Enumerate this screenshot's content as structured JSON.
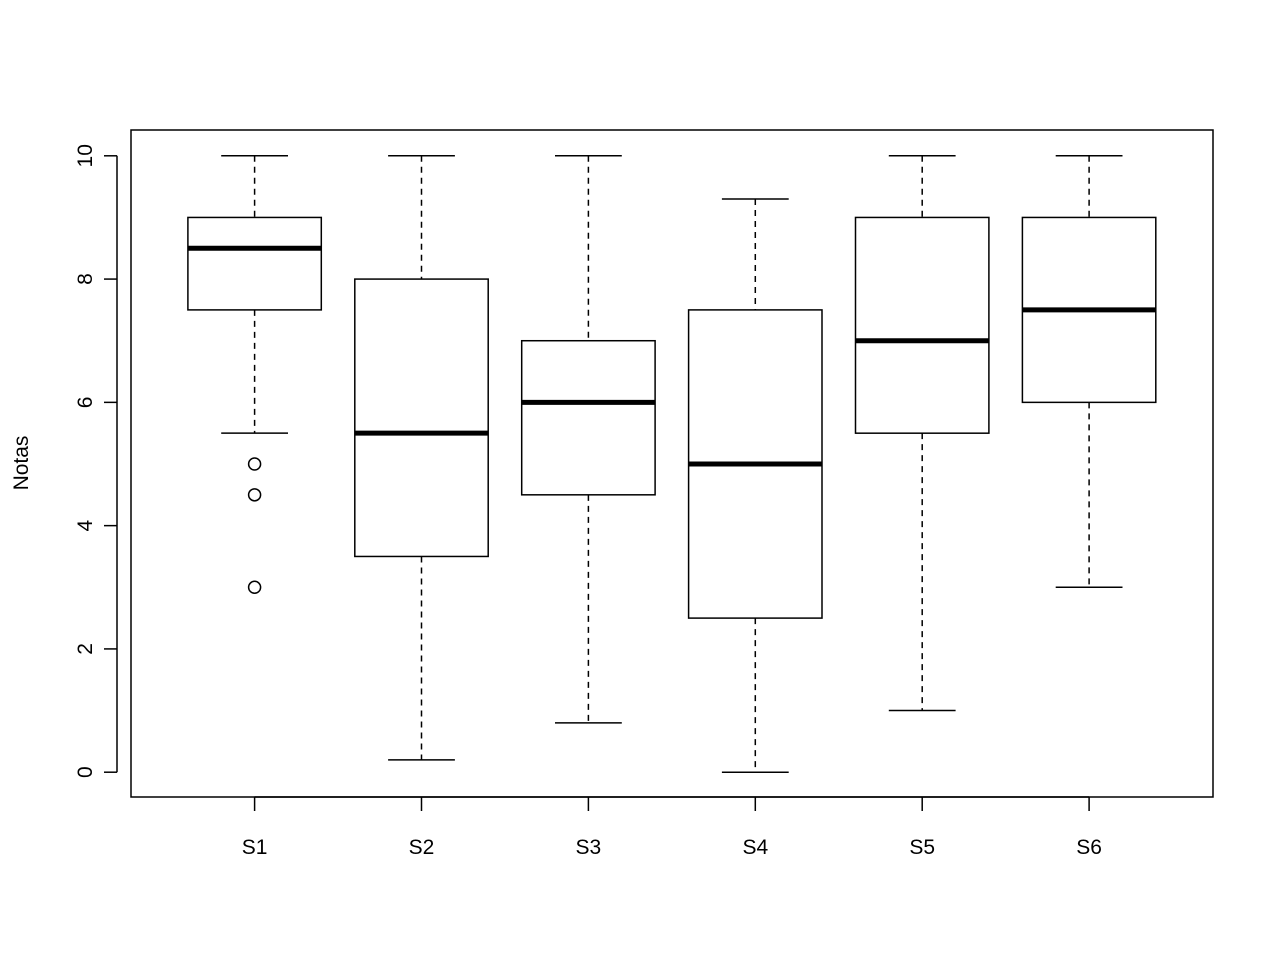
{
  "chart_data": {
    "type": "boxplot",
    "title": "",
    "xlabel": "",
    "ylabel": "Notas",
    "ylim": [
      -0.4,
      10.4
    ],
    "yticks": [
      0,
      2,
      4,
      6,
      8,
      10
    ],
    "categories": [
      "S1",
      "S2",
      "S3",
      "S4",
      "S5",
      "S6"
    ],
    "boxes": [
      {
        "whisker_low": 5.5,
        "q1": 7.5,
        "median": 8.5,
        "q3": 9.0,
        "whisker_high": 10.0,
        "outliers": [
          5.0,
          4.5,
          3.0
        ]
      },
      {
        "whisker_low": 0.2,
        "q1": 3.5,
        "median": 5.5,
        "q3": 8.0,
        "whisker_high": 10.0,
        "outliers": []
      },
      {
        "whisker_low": 0.8,
        "q1": 4.5,
        "median": 6.0,
        "q3": 7.0,
        "whisker_high": 10.0,
        "outliers": []
      },
      {
        "whisker_low": 0.0,
        "q1": 2.5,
        "median": 5.0,
        "q3": 7.5,
        "whisker_high": 9.3,
        "outliers": []
      },
      {
        "whisker_low": 1.0,
        "q1": 5.5,
        "median": 7.0,
        "q3": 9.0,
        "whisker_high": 10.0,
        "outliers": []
      },
      {
        "whisker_low": 3.0,
        "q1": 6.0,
        "median": 7.5,
        "q3": 9.0,
        "whisker_high": 10.0,
        "outliers": []
      }
    ],
    "grid": false,
    "colors": {
      "stroke": "#000000",
      "fill": "#ffffff"
    }
  }
}
